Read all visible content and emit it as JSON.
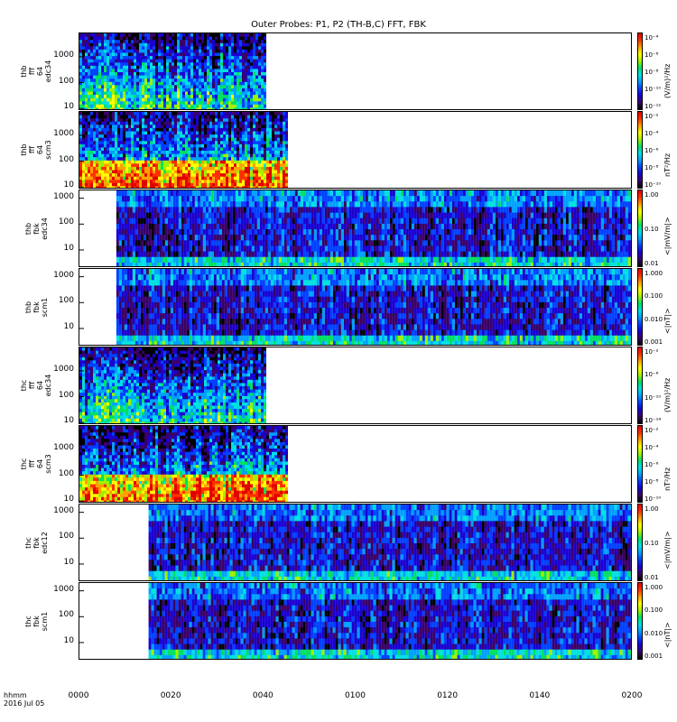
{
  "title": "Outer Probes: P1, P2 (TH-B,C) FFT, FBK",
  "x_axis": {
    "ticks": [
      "0000",
      "0020",
      "0040",
      "0100",
      "0120",
      "0140",
      "0200"
    ],
    "label_line1": "hhmm",
    "label_line2": "2016 Jul 05"
  },
  "colors": {
    "colorbar": [
      "#000000",
      "#3a0066",
      "#1a00d0",
      "#0040ff",
      "#00a0ff",
      "#00e0e0",
      "#00e060",
      "#a0f000",
      "#ffff00",
      "#ffa000",
      "#ff3000",
      "#e00000"
    ]
  },
  "chart_data": [
    {
      "type": "heatmap",
      "ylabel": [
        "thb",
        "fff",
        "64",
        "edc34"
      ],
      "yticks": [
        "1000",
        "100",
        "10"
      ],
      "ylim": [
        8,
        8000
      ],
      "yscale": "log",
      "data_coverage_hhmm": [
        "0000",
        "0040"
      ],
      "colorbar_ticks": [
        "10⁻⁴",
        "10⁻⁶",
        "10⁻⁸",
        "10⁻¹⁰",
        "10⁻¹²"
      ],
      "colorbar_unit": "(V/m)²/Hz"
    },
    {
      "type": "heatmap",
      "ylabel": [
        "thb",
        "fff",
        "64",
        "scm3"
      ],
      "yticks": [
        "1000",
        "100",
        "10"
      ],
      "ylim": [
        8,
        8000
      ],
      "yscale": "log",
      "data_coverage_hhmm": [
        "0000",
        "0045"
      ],
      "colorbar_ticks": [
        "10⁻²",
        "10⁻⁴",
        "10⁻⁶",
        "10⁻⁸",
        "10⁻¹⁰"
      ],
      "colorbar_unit": "nT²/Hz"
    },
    {
      "type": "heatmap",
      "ylabel": [
        "thb",
        "fbk",
        "edc34"
      ],
      "yticks": [
        "1000",
        "100",
        "10"
      ],
      "ylim": [
        2,
        2000
      ],
      "yscale": "log",
      "data_coverage_hhmm": [
        "0008",
        "0200"
      ],
      "colorbar_ticks": [
        "1.00",
        "0.10",
        "0.01"
      ],
      "colorbar_unit": "<|mV/m|>"
    },
    {
      "type": "heatmap",
      "ylabel": [
        "thb",
        "fbk",
        "scm1"
      ],
      "yticks": [
        "1000",
        "100",
        "10"
      ],
      "ylim": [
        2,
        2000
      ],
      "yscale": "log",
      "data_coverage_hhmm": [
        "0008",
        "0200"
      ],
      "colorbar_ticks": [
        "1.000",
        "0.100",
        "0.010",
        "0.001"
      ],
      "colorbar_unit": "<|nT|>"
    },
    {
      "type": "heatmap",
      "ylabel": [
        "thc",
        "fff",
        "64",
        "edc34"
      ],
      "yticks": [
        "1000",
        "100",
        "10"
      ],
      "ylim": [
        8,
        8000
      ],
      "yscale": "log",
      "data_coverage_hhmm": [
        "0000",
        "0040"
      ],
      "colorbar_ticks": [
        "10⁻²",
        "10⁻⁶",
        "10⁻¹⁰",
        "10⁻¹⁴"
      ],
      "colorbar_unit": "(V/m)²/Hz"
    },
    {
      "type": "heatmap",
      "ylabel": [
        "thc",
        "fff",
        "64",
        "scm3"
      ],
      "yticks": [
        "1000",
        "100",
        "10"
      ],
      "ylim": [
        8,
        8000
      ],
      "yscale": "log",
      "data_coverage_hhmm": [
        "0000",
        "0045"
      ],
      "colorbar_ticks": [
        "10⁻²",
        "10⁻⁴",
        "10⁻⁶",
        "10⁻⁸",
        "10⁻¹⁰"
      ],
      "colorbar_unit": "nT²/Hz"
    },
    {
      "type": "heatmap",
      "ylabel": [
        "thc",
        "fbk",
        "edc12"
      ],
      "yticks": [
        "1000",
        "100",
        "10"
      ],
      "ylim": [
        2,
        2000
      ],
      "yscale": "log",
      "data_coverage_hhmm": [
        "0015",
        "0200"
      ],
      "colorbar_ticks": [
        "1.00",
        "0.10",
        "0.01"
      ],
      "colorbar_unit": "<|mV/m|>"
    },
    {
      "type": "heatmap",
      "ylabel": [
        "thc",
        "fbk",
        "scm1"
      ],
      "yticks": [
        "1000",
        "100",
        "10"
      ],
      "ylim": [
        2,
        2000
      ],
      "yscale": "log",
      "data_coverage_hhmm": [
        "0015",
        "0200"
      ],
      "colorbar_ticks": [
        "1.000",
        "0.100",
        "0.010",
        "0.001"
      ],
      "colorbar_unit": "<|nT|>"
    }
  ]
}
